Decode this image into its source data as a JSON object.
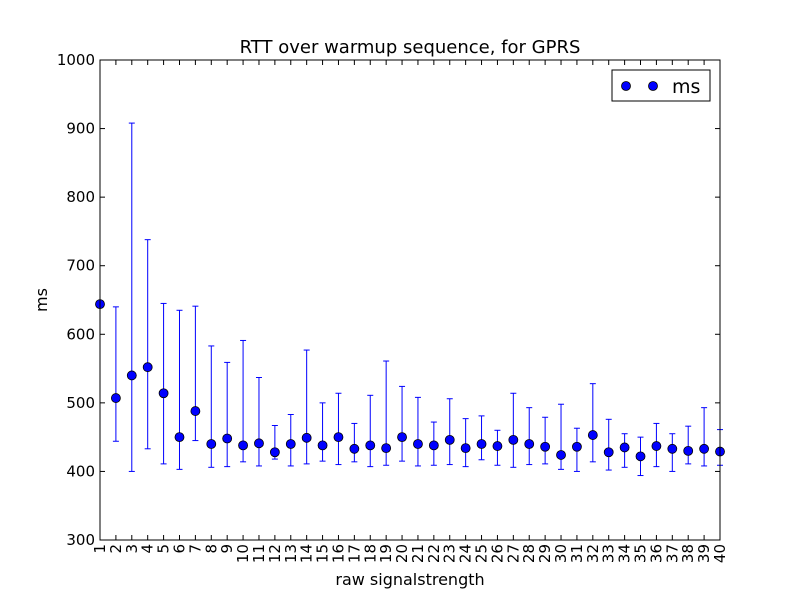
{
  "chart_data": {
    "type": "scatter",
    "title": "RTT over warmup sequence, for GPRS",
    "xlabel": "raw signalstrength",
    "ylabel": "ms",
    "xlim": [
      1,
      40
    ],
    "ylim": [
      300,
      1000
    ],
    "y_ticks": [
      300,
      400,
      500,
      600,
      700,
      800,
      900,
      1000
    ],
    "categories": [
      "1",
      "2",
      "3",
      "4",
      "5",
      "6",
      "7",
      "8",
      "9",
      "10",
      "11",
      "12",
      "13",
      "14",
      "15",
      "16",
      "17",
      "18",
      "19",
      "20",
      "21",
      "22",
      "23",
      "24",
      "25",
      "26",
      "27",
      "28",
      "29",
      "30",
      "31",
      "32",
      "33",
      "34",
      "35",
      "36",
      "37",
      "38",
      "39",
      "40"
    ],
    "legend": {
      "entries": [
        "ms"
      ],
      "placement": "top-right"
    },
    "grid": false,
    "colors": {
      "series": "#0000ff",
      "marker_edge": "#000000",
      "axes": "#000000"
    },
    "series": [
      {
        "name": "ms",
        "marker": "circle",
        "x": [
          1,
          2,
          3,
          4,
          5,
          6,
          7,
          8,
          9,
          10,
          11,
          12,
          13,
          14,
          15,
          16,
          17,
          18,
          19,
          20,
          21,
          22,
          23,
          24,
          25,
          26,
          27,
          28,
          29,
          30,
          31,
          32,
          33,
          34,
          35,
          36,
          37,
          38,
          39,
          40
        ],
        "values": [
          644,
          507,
          540,
          552,
          514,
          450,
          488,
          440,
          448,
          438,
          441,
          428,
          440,
          449,
          438,
          450,
          433,
          438,
          434,
          450,
          440,
          438,
          446,
          434,
          440,
          437,
          446,
          440,
          436,
          424,
          436,
          453,
          428,
          435,
          422,
          437,
          433,
          430,
          433,
          429
        ],
        "err_low": [
          null,
          444,
          400,
          433,
          411,
          403,
          445,
          406,
          407,
          414,
          408,
          418,
          408,
          411,
          415,
          410,
          414,
          407,
          409,
          415,
          408,
          409,
          410,
          407,
          417,
          409,
          406,
          410,
          411,
          403,
          400,
          414,
          402,
          406,
          394,
          407,
          400,
          411,
          408,
          409
        ],
        "err_high": [
          null,
          640,
          908,
          738,
          645,
          635,
          641,
          583,
          559,
          591,
          537,
          467,
          483,
          577,
          500,
          514,
          470,
          511,
          561,
          524,
          508,
          472,
          506,
          477,
          481,
          460,
          514,
          493,
          479,
          498,
          463,
          528,
          476,
          455,
          450,
          470,
          455,
          466,
          493,
          461
        ]
      }
    ]
  }
}
